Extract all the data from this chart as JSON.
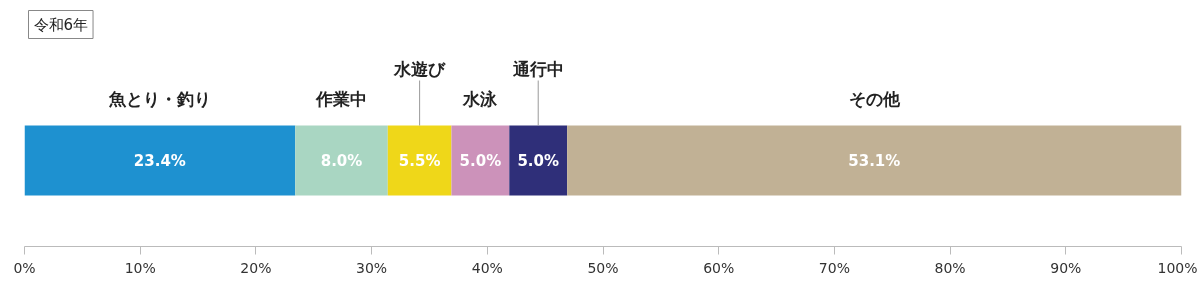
{
  "chart_data": {
    "type": "bar",
    "orientation": "horizontal",
    "stacked": true,
    "title": "令和6年",
    "categories": [
      null
    ],
    "series": [
      {
        "name": "魚とり・釣り",
        "color": "#1e91d0",
        "values": [
          23.4
        ],
        "value_labels": [
          "23.4%"
        ]
      },
      {
        "name": "作業中",
        "color": "#a9d6c2",
        "values": [
          8.0
        ],
        "value_labels": [
          "8.0%"
        ]
      },
      {
        "name": "水遊び",
        "color": "#efd719",
        "values": [
          5.5
        ],
        "value_labels": [
          "5.5%"
        ]
      },
      {
        "name": "水泳",
        "color": "#cc92ba",
        "values": [
          5.0
        ],
        "value_labels": [
          "5.0%"
        ]
      },
      {
        "name": "通行中",
        "color": "#2f2f79",
        "values": [
          5.0
        ],
        "value_labels": [
          "5.0%"
        ]
      },
      {
        "name": "その他",
        "color": "#c1b195",
        "values": [
          53.1
        ],
        "value_labels": [
          "53.1%"
        ]
      }
    ],
    "xlim": [
      0,
      100
    ],
    "xticks": [
      {
        "value": 0,
        "label": "0%"
      },
      {
        "value": 10,
        "label": "10%"
      },
      {
        "value": 20,
        "label": "20%"
      },
      {
        "value": 30,
        "label": "30%"
      },
      {
        "value": 40,
        "label": "40%"
      },
      {
        "value": 50,
        "label": "50%"
      },
      {
        "value": 60,
        "label": "60%"
      },
      {
        "value": 70,
        "label": "70%"
      },
      {
        "value": 80,
        "label": "80%"
      },
      {
        "value": 90,
        "label": "90%"
      },
      {
        "value": 100,
        "label": "100%"
      }
    ],
    "grid": false
  }
}
